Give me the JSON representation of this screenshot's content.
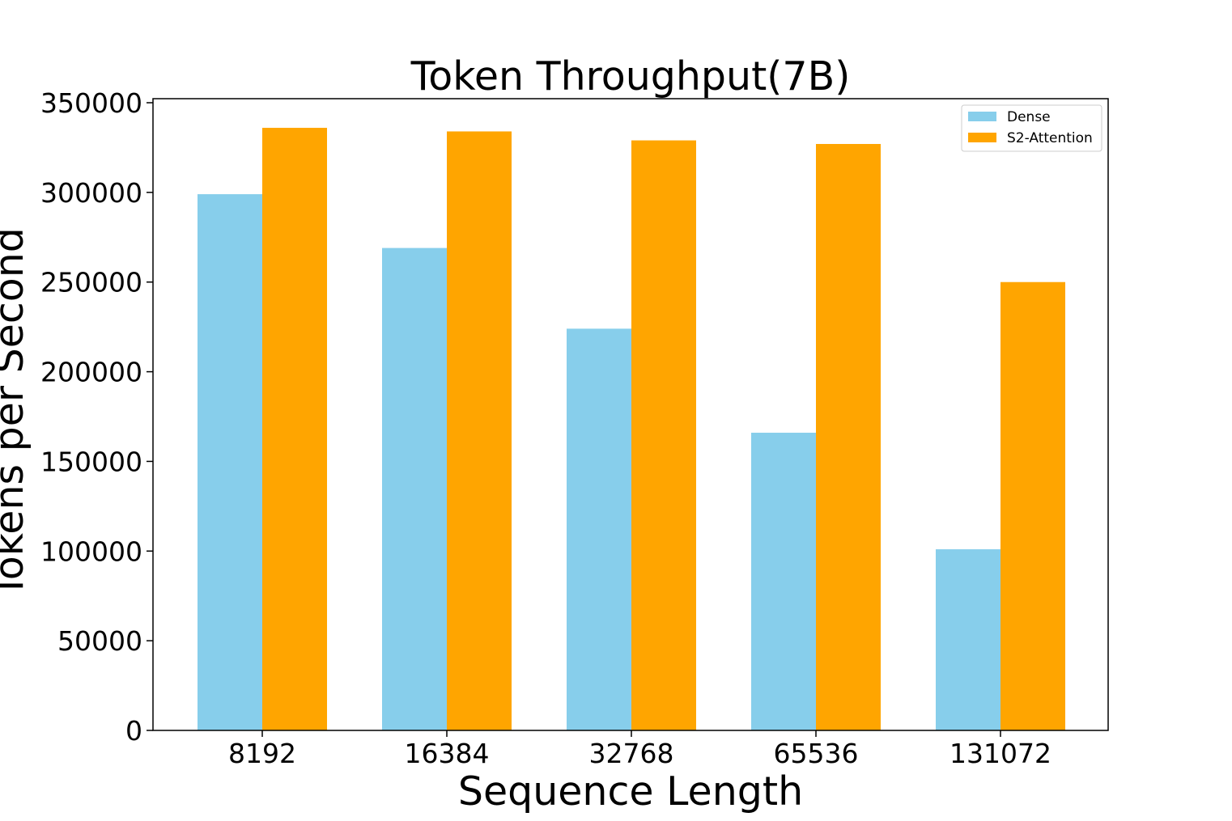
{
  "chart_data": {
    "type": "bar",
    "title": "Token Throughput(7B)",
    "xlabel": "Sequence Length",
    "ylabel": "Tokens per Second",
    "categories": [
      "8192",
      "16384",
      "32768",
      "65536",
      "131072"
    ],
    "series": [
      {
        "name": "Dense",
        "color": "#87CEEB",
        "values": [
          299000,
          269000,
          224000,
          166000,
          101000
        ]
      },
      {
        "name": "S2-Attention",
        "color": "#FFA500",
        "values": [
          336000,
          334000,
          329000,
          327000,
          250000
        ]
      }
    ],
    "ylim": [
      0,
      350000
    ],
    "yticks": [
      "0",
      "50000",
      "100000",
      "150000",
      "200000",
      "250000",
      "300000",
      "350000"
    ],
    "legend": "top-right",
    "grid": false
  }
}
